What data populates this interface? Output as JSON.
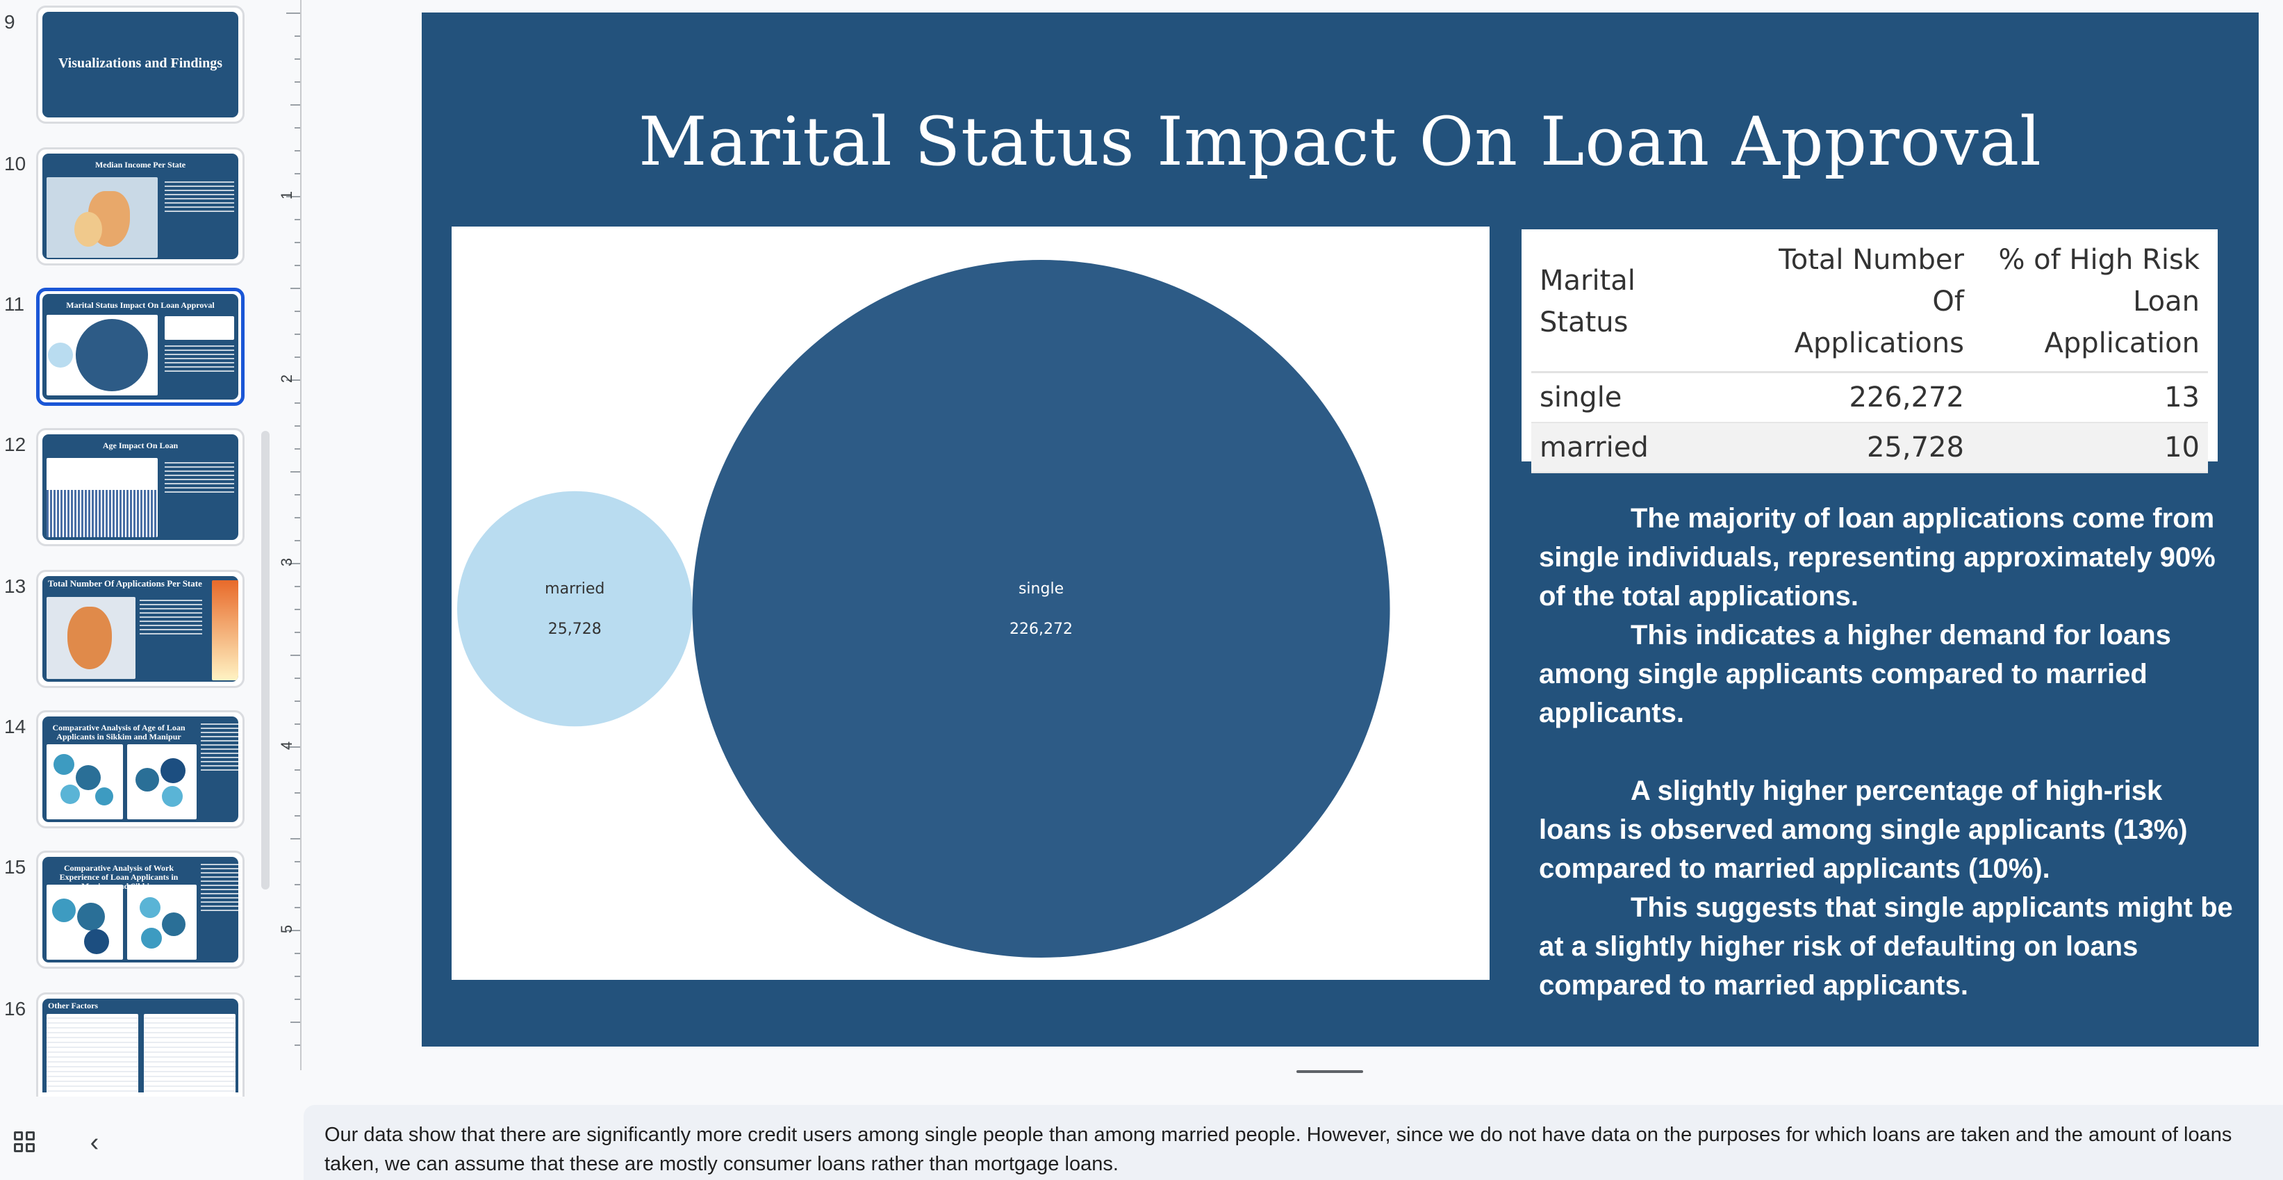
{
  "sidebar": {
    "slides": [
      {
        "number": "9",
        "title": "Visualizations and Findings"
      },
      {
        "number": "10",
        "title": "Median Income Per State"
      },
      {
        "number": "11",
        "title": "Marital Status Impact On Loan Approval"
      },
      {
        "number": "12",
        "title": "Age Impact On Loan"
      },
      {
        "number": "13",
        "title": "Total Number Of Applications Per State"
      },
      {
        "number": "14",
        "title": "Comparative Analysis of Age of Loan Applicants in Sikkim and Manipur"
      },
      {
        "number": "15",
        "title": "Comparative Analysis of Work Experience of Loan Applicants in Manipur and Sikkim"
      },
      {
        "number": "16",
        "title": "Other Factors"
      }
    ],
    "selected_slide": "11",
    "grid_view_icon": "grid-view-icon",
    "collapse_icon": "chevron-left-icon"
  },
  "ruler": {
    "marks": [
      "1",
      "2",
      "3",
      "4",
      "5"
    ]
  },
  "slide": {
    "title": "Marital Status Impact On Loan Approval",
    "table": {
      "headers": [
        "Marital Status",
        "Total Number Of Applications",
        "% of High Risk Loan Application"
      ],
      "rows": [
        {
          "status": "single",
          "total": "226,272",
          "pct": "13"
        },
        {
          "status": "married",
          "total": "25,728",
          "pct": "10"
        }
      ]
    },
    "insights": [
      "The majority of loan applications come from single individuals, representing approximately 90% of the total applications.",
      "This indicates a higher demand for loans among single applicants compared to married applicants.",
      "A slightly higher percentage of high-risk loans is observed among single applicants (13%) compared to married applicants (10%).",
      "This suggests that single applicants might be at a slightly higher risk of defaulting on loans compared to married applicants."
    ]
  },
  "chart_data": {
    "type": "bubble",
    "series": [
      {
        "label": "married",
        "value": 25728,
        "value_label": "25,728",
        "color": "#b9dcf0",
        "text_color": "#333333"
      },
      {
        "label": "single",
        "value": 226272,
        "value_label": "226,272",
        "color": "#2d5b86",
        "text_color": "#ffffff"
      }
    ]
  },
  "notes": {
    "text": "Our data show that there are significantly more credit users among single people than among married people. However, since we do not have data on the purposes for which loans are taken and the amount of loans taken, we can assume that these are mostly consumer loans rather than mortgage loans."
  },
  "colors": {
    "slide_background": "#23527c",
    "selected_border": "#1a56d6",
    "married_bubble": "#b9dcf0",
    "single_bubble": "#2d5b86"
  }
}
